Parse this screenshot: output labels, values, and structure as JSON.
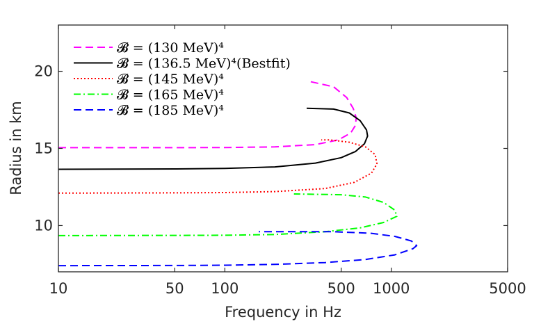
{
  "chart_data": {
    "type": "line",
    "title": "",
    "xlabel": "Frequency in Hz",
    "ylabel": "Radius in km",
    "xscale": "log",
    "xlim": [
      10,
      5000
    ],
    "ylim": [
      7,
      23
    ],
    "xticks": [
      10,
      50,
      100,
      500,
      1000,
      5000
    ],
    "xtick_labels": [
      "10",
      "50",
      "100",
      "500",
      "1000",
      "5000"
    ],
    "yticks": [
      10,
      15,
      20
    ],
    "ytick_labels": [
      "10",
      "15",
      "20"
    ],
    "grid": false,
    "legend_position": "top-left",
    "series": [
      {
        "name": "𝓑 = (130 MeV)⁴",
        "legend_label": "𝓑 = (130 MeV)⁴",
        "color": "#ff00ff",
        "style": "dashed",
        "points": [
          [
            10,
            15.05
          ],
          [
            50,
            15.05
          ],
          [
            100,
            15.06
          ],
          [
            200,
            15.1
          ],
          [
            350,
            15.25
          ],
          [
            480,
            15.55
          ],
          [
            570,
            16.0
          ],
          [
            610,
            16.5
          ],
          [
            615,
            17.0
          ],
          [
            590,
            17.6
          ],
          [
            540,
            18.3
          ],
          [
            450,
            19.0
          ],
          [
            320,
            19.35
          ]
        ]
      },
      {
        "name": "𝓑 = (136.5 MeV)⁴(Bestfit)",
        "legend_label": "𝓑 = (136.5 MeV)⁴(Bestfit)",
        "color": "#000000",
        "style": "solid",
        "points": [
          [
            10,
            13.65
          ],
          [
            50,
            13.67
          ],
          [
            100,
            13.7
          ],
          [
            200,
            13.8
          ],
          [
            350,
            14.05
          ],
          [
            500,
            14.4
          ],
          [
            610,
            14.8
          ],
          [
            690,
            15.3
          ],
          [
            720,
            15.8
          ],
          [
            710,
            16.2
          ],
          [
            650,
            16.8
          ],
          [
            560,
            17.3
          ],
          [
            450,
            17.55
          ],
          [
            310,
            17.6
          ]
        ]
      },
      {
        "name": "𝓑 = (145 MeV)⁴",
        "legend_label": "𝓑 = (145 MeV)⁴",
        "color": "#ff0000",
        "style": "dotted",
        "points": [
          [
            10,
            12.1
          ],
          [
            50,
            12.12
          ],
          [
            100,
            12.14
          ],
          [
            200,
            12.2
          ],
          [
            400,
            12.4
          ],
          [
            600,
            12.8
          ],
          [
            760,
            13.4
          ],
          [
            820,
            14.0
          ],
          [
            800,
            14.6
          ],
          [
            700,
            15.1
          ],
          [
            560,
            15.4
          ],
          [
            430,
            15.55
          ],
          [
            380,
            15.55
          ]
        ]
      },
      {
        "name": "𝓑 = (165 MeV)⁴",
        "legend_label": "𝓑 = (165 MeV)⁴",
        "color": "#00ff00",
        "style": "dashdot",
        "points": [
          [
            10,
            9.35
          ],
          [
            50,
            9.36
          ],
          [
            100,
            9.37
          ],
          [
            200,
            9.42
          ],
          [
            400,
            9.6
          ],
          [
            650,
            9.85
          ],
          [
            900,
            10.2
          ],
          [
            1080,
            10.6
          ],
          [
            1050,
            11.0
          ],
          [
            900,
            11.5
          ],
          [
            700,
            11.85
          ],
          [
            500,
            12.0
          ],
          [
            260,
            12.05
          ]
        ]
      },
      {
        "name": "𝓑 = (185 MeV)⁴",
        "legend_label": "𝓑 = (185 MeV)⁴",
        "color": "#0000ff",
        "style": "dashed",
        "points": [
          [
            10,
            7.4
          ],
          [
            50,
            7.41
          ],
          [
            100,
            7.43
          ],
          [
            200,
            7.48
          ],
          [
            400,
            7.6
          ],
          [
            700,
            7.8
          ],
          [
            1050,
            8.1
          ],
          [
            1350,
            8.5
          ],
          [
            1420,
            8.7
          ],
          [
            1320,
            9.0
          ],
          [
            1050,
            9.3
          ],
          [
            750,
            9.5
          ],
          [
            450,
            9.6
          ],
          [
            160,
            9.6
          ]
        ]
      }
    ]
  }
}
